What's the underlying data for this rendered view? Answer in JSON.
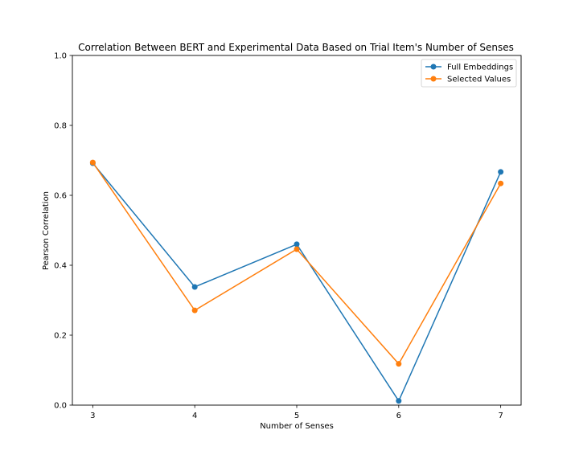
{
  "chart_data": {
    "type": "line",
    "title": "Correlation Between BERT and Experimental Data Based on Trial Item's Number of Senses",
    "xlabel": "Number of Senses",
    "ylabel": "Pearson Correlation",
    "x": [
      3,
      4,
      5,
      6,
      7
    ],
    "xticks": [
      "3",
      "4",
      "5",
      "6",
      "7"
    ],
    "yticks": [
      "0.0",
      "0.2",
      "0.4",
      "0.6",
      "0.8",
      "1.0"
    ],
    "xlim": [
      2.8,
      7.2
    ],
    "ylim": [
      0.0,
      1.0
    ],
    "grid": false,
    "legend": "top-right",
    "series": [
      {
        "name": "Full Embeddings",
        "color": "#1f77b4",
        "values": [
          0.692,
          0.338,
          0.46,
          0.012,
          0.667
        ]
      },
      {
        "name": "Selected Values",
        "color": "#ff7f0e",
        "values": [
          0.694,
          0.271,
          0.446,
          0.118,
          0.634
        ]
      }
    ]
  }
}
